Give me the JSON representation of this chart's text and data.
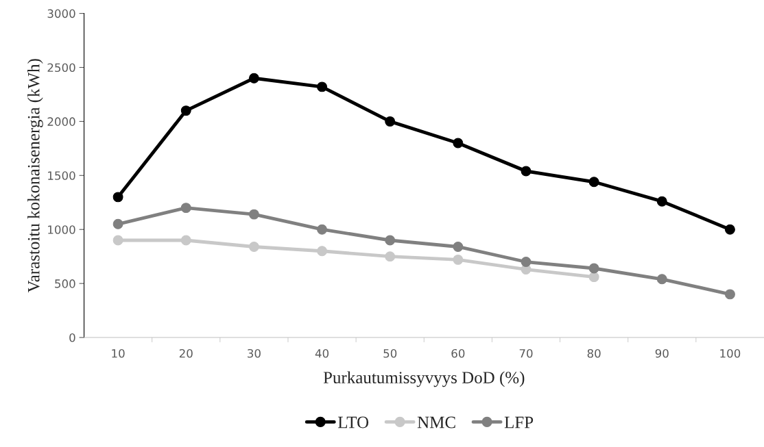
{
  "chart_data": {
    "type": "line",
    "xlabel": "Purkautumissyvyys DoD (%)",
    "ylabel": "Varastoitu kokonaisenergia (kWh)",
    "categories": [
      "10",
      "20",
      "30",
      "40",
      "50",
      "60",
      "70",
      "80",
      "90",
      "100"
    ],
    "series": [
      {
        "name": "LTO",
        "color": "#000000",
        "values": [
          1300,
          2100,
          2400,
          2320,
          2000,
          1800,
          1540,
          1440,
          1260,
          1000
        ]
      },
      {
        "name": "NMC",
        "color": "#c8c8c8",
        "values": [
          900,
          900,
          840,
          800,
          750,
          720,
          630,
          560,
          null,
          null
        ]
      },
      {
        "name": "LFP",
        "color": "#808080",
        "values": [
          1050,
          1200,
          1140,
          1000,
          900,
          840,
          700,
          640,
          540,
          400
        ]
      }
    ],
    "ylim": [
      0,
      3000
    ],
    "yticks": [
      0,
      500,
      1000,
      1500,
      2000,
      2500,
      3000
    ],
    "grid": false,
    "legend": "bottom",
    "marker": "circle",
    "line_style": "solid"
  }
}
